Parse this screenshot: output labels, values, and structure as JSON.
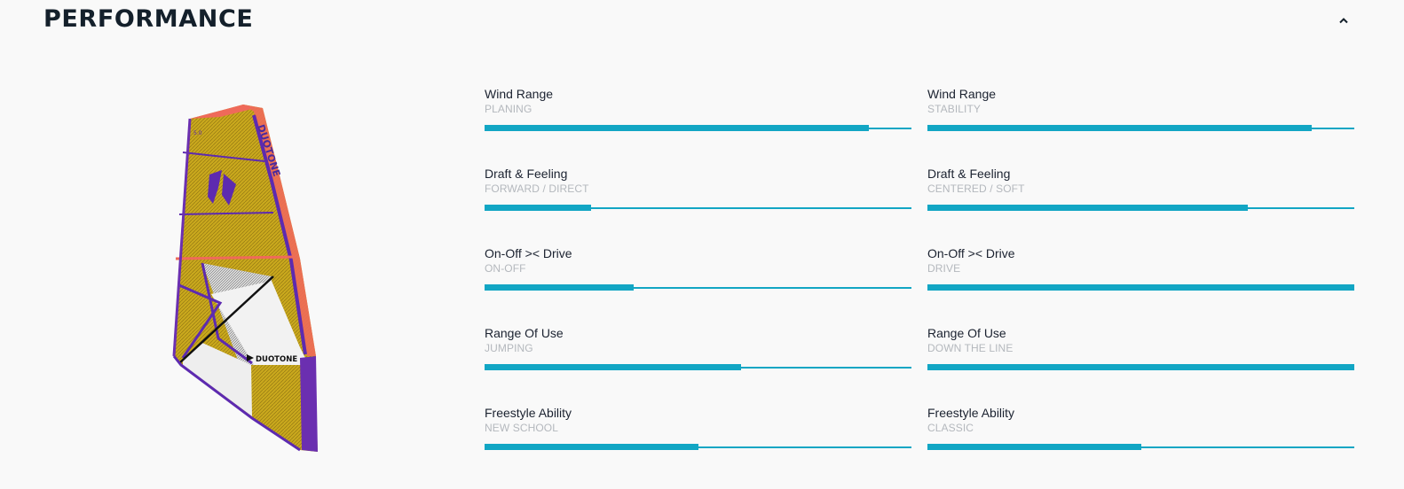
{
  "header": {
    "title": "PERFORMANCE"
  },
  "sail": {
    "brand": "DUOTONE",
    "size": "5.0"
  },
  "colors": {
    "accent": "#12a6c4",
    "title": "#14202b",
    "subtle": "#b4b8bd"
  },
  "metrics": [
    {
      "label": "Wind Range",
      "sub": "PLANING",
      "value": 0.9
    },
    {
      "label": "Wind Range",
      "sub": "STABILITY",
      "value": 0.9
    },
    {
      "label": "Draft & Feeling",
      "sub": "FORWARD / DIRECT",
      "value": 0.25
    },
    {
      "label": "Draft & Feeling",
      "sub": "CENTERED / SOFT",
      "value": 0.75
    },
    {
      "label": "On-Off >< Drive",
      "sub": "ON-OFF",
      "value": 0.35
    },
    {
      "label": "On-Off >< Drive",
      "sub": "DRIVE",
      "value": 1.0
    },
    {
      "label": "Range Of Use",
      "sub": "JUMPING",
      "value": 0.6
    },
    {
      "label": "Range Of Use",
      "sub": "DOWN THE LINE",
      "value": 1.0
    },
    {
      "label": "Freestyle Ability",
      "sub": "NEW SCHOOL",
      "value": 0.5
    },
    {
      "label": "Freestyle Ability",
      "sub": "CLASSIC",
      "value": 0.5
    }
  ]
}
